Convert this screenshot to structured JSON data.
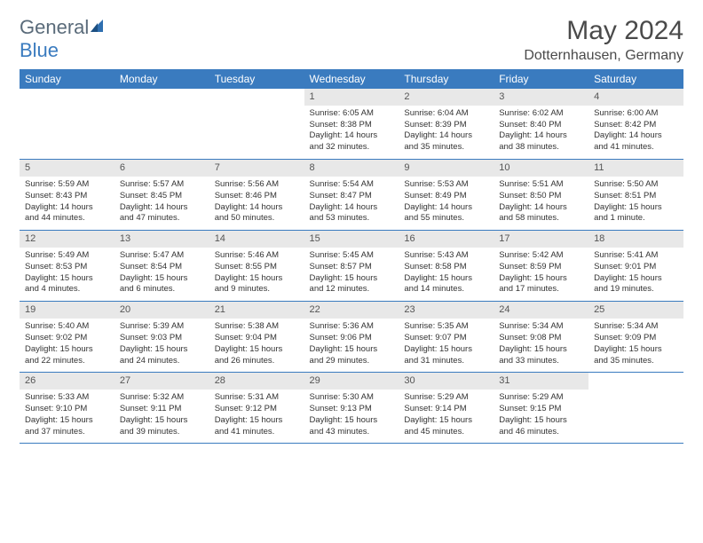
{
  "brand": {
    "part1": "General",
    "part2": "Blue"
  },
  "title": "May 2024",
  "location": "Dotternhausen, Germany",
  "colors": {
    "header_bg": "#3a7bbf",
    "header_text": "#ffffff",
    "daynum_bg": "#e8e8e8",
    "border": "#3a7bbf",
    "text": "#333333",
    "logo_gray": "#5a6b7a",
    "logo_blue": "#3a7bbf"
  },
  "typography": {
    "title_fontsize": 30,
    "location_fontsize": 16,
    "header_fontsize": 12,
    "cell_fontsize": 9.5
  },
  "weekdays": [
    "Sunday",
    "Monday",
    "Tuesday",
    "Wednesday",
    "Thursday",
    "Friday",
    "Saturday"
  ],
  "weeks": [
    [
      null,
      null,
      null,
      {
        "d": "1",
        "sr": "Sunrise: 6:05 AM",
        "ss": "Sunset: 8:38 PM",
        "dl1": "Daylight: 14 hours",
        "dl2": "and 32 minutes."
      },
      {
        "d": "2",
        "sr": "Sunrise: 6:04 AM",
        "ss": "Sunset: 8:39 PM",
        "dl1": "Daylight: 14 hours",
        "dl2": "and 35 minutes."
      },
      {
        "d": "3",
        "sr": "Sunrise: 6:02 AM",
        "ss": "Sunset: 8:40 PM",
        "dl1": "Daylight: 14 hours",
        "dl2": "and 38 minutes."
      },
      {
        "d": "4",
        "sr": "Sunrise: 6:00 AM",
        "ss": "Sunset: 8:42 PM",
        "dl1": "Daylight: 14 hours",
        "dl2": "and 41 minutes."
      }
    ],
    [
      {
        "d": "5",
        "sr": "Sunrise: 5:59 AM",
        "ss": "Sunset: 8:43 PM",
        "dl1": "Daylight: 14 hours",
        "dl2": "and 44 minutes."
      },
      {
        "d": "6",
        "sr": "Sunrise: 5:57 AM",
        "ss": "Sunset: 8:45 PM",
        "dl1": "Daylight: 14 hours",
        "dl2": "and 47 minutes."
      },
      {
        "d": "7",
        "sr": "Sunrise: 5:56 AM",
        "ss": "Sunset: 8:46 PM",
        "dl1": "Daylight: 14 hours",
        "dl2": "and 50 minutes."
      },
      {
        "d": "8",
        "sr": "Sunrise: 5:54 AM",
        "ss": "Sunset: 8:47 PM",
        "dl1": "Daylight: 14 hours",
        "dl2": "and 53 minutes."
      },
      {
        "d": "9",
        "sr": "Sunrise: 5:53 AM",
        "ss": "Sunset: 8:49 PM",
        "dl1": "Daylight: 14 hours",
        "dl2": "and 55 minutes."
      },
      {
        "d": "10",
        "sr": "Sunrise: 5:51 AM",
        "ss": "Sunset: 8:50 PM",
        "dl1": "Daylight: 14 hours",
        "dl2": "and 58 minutes."
      },
      {
        "d": "11",
        "sr": "Sunrise: 5:50 AM",
        "ss": "Sunset: 8:51 PM",
        "dl1": "Daylight: 15 hours",
        "dl2": "and 1 minute."
      }
    ],
    [
      {
        "d": "12",
        "sr": "Sunrise: 5:49 AM",
        "ss": "Sunset: 8:53 PM",
        "dl1": "Daylight: 15 hours",
        "dl2": "and 4 minutes."
      },
      {
        "d": "13",
        "sr": "Sunrise: 5:47 AM",
        "ss": "Sunset: 8:54 PM",
        "dl1": "Daylight: 15 hours",
        "dl2": "and 6 minutes."
      },
      {
        "d": "14",
        "sr": "Sunrise: 5:46 AM",
        "ss": "Sunset: 8:55 PM",
        "dl1": "Daylight: 15 hours",
        "dl2": "and 9 minutes."
      },
      {
        "d": "15",
        "sr": "Sunrise: 5:45 AM",
        "ss": "Sunset: 8:57 PM",
        "dl1": "Daylight: 15 hours",
        "dl2": "and 12 minutes."
      },
      {
        "d": "16",
        "sr": "Sunrise: 5:43 AM",
        "ss": "Sunset: 8:58 PM",
        "dl1": "Daylight: 15 hours",
        "dl2": "and 14 minutes."
      },
      {
        "d": "17",
        "sr": "Sunrise: 5:42 AM",
        "ss": "Sunset: 8:59 PM",
        "dl1": "Daylight: 15 hours",
        "dl2": "and 17 minutes."
      },
      {
        "d": "18",
        "sr": "Sunrise: 5:41 AM",
        "ss": "Sunset: 9:01 PM",
        "dl1": "Daylight: 15 hours",
        "dl2": "and 19 minutes."
      }
    ],
    [
      {
        "d": "19",
        "sr": "Sunrise: 5:40 AM",
        "ss": "Sunset: 9:02 PM",
        "dl1": "Daylight: 15 hours",
        "dl2": "and 22 minutes."
      },
      {
        "d": "20",
        "sr": "Sunrise: 5:39 AM",
        "ss": "Sunset: 9:03 PM",
        "dl1": "Daylight: 15 hours",
        "dl2": "and 24 minutes."
      },
      {
        "d": "21",
        "sr": "Sunrise: 5:38 AM",
        "ss": "Sunset: 9:04 PM",
        "dl1": "Daylight: 15 hours",
        "dl2": "and 26 minutes."
      },
      {
        "d": "22",
        "sr": "Sunrise: 5:36 AM",
        "ss": "Sunset: 9:06 PM",
        "dl1": "Daylight: 15 hours",
        "dl2": "and 29 minutes."
      },
      {
        "d": "23",
        "sr": "Sunrise: 5:35 AM",
        "ss": "Sunset: 9:07 PM",
        "dl1": "Daylight: 15 hours",
        "dl2": "and 31 minutes."
      },
      {
        "d": "24",
        "sr": "Sunrise: 5:34 AM",
        "ss": "Sunset: 9:08 PM",
        "dl1": "Daylight: 15 hours",
        "dl2": "and 33 minutes."
      },
      {
        "d": "25",
        "sr": "Sunrise: 5:34 AM",
        "ss": "Sunset: 9:09 PM",
        "dl1": "Daylight: 15 hours",
        "dl2": "and 35 minutes."
      }
    ],
    [
      {
        "d": "26",
        "sr": "Sunrise: 5:33 AM",
        "ss": "Sunset: 9:10 PM",
        "dl1": "Daylight: 15 hours",
        "dl2": "and 37 minutes."
      },
      {
        "d": "27",
        "sr": "Sunrise: 5:32 AM",
        "ss": "Sunset: 9:11 PM",
        "dl1": "Daylight: 15 hours",
        "dl2": "and 39 minutes."
      },
      {
        "d": "28",
        "sr": "Sunrise: 5:31 AM",
        "ss": "Sunset: 9:12 PM",
        "dl1": "Daylight: 15 hours",
        "dl2": "and 41 minutes."
      },
      {
        "d": "29",
        "sr": "Sunrise: 5:30 AM",
        "ss": "Sunset: 9:13 PM",
        "dl1": "Daylight: 15 hours",
        "dl2": "and 43 minutes."
      },
      {
        "d": "30",
        "sr": "Sunrise: 5:29 AM",
        "ss": "Sunset: 9:14 PM",
        "dl1": "Daylight: 15 hours",
        "dl2": "and 45 minutes."
      },
      {
        "d": "31",
        "sr": "Sunrise: 5:29 AM",
        "ss": "Sunset: 9:15 PM",
        "dl1": "Daylight: 15 hours",
        "dl2": "and 46 minutes."
      },
      null
    ]
  ]
}
